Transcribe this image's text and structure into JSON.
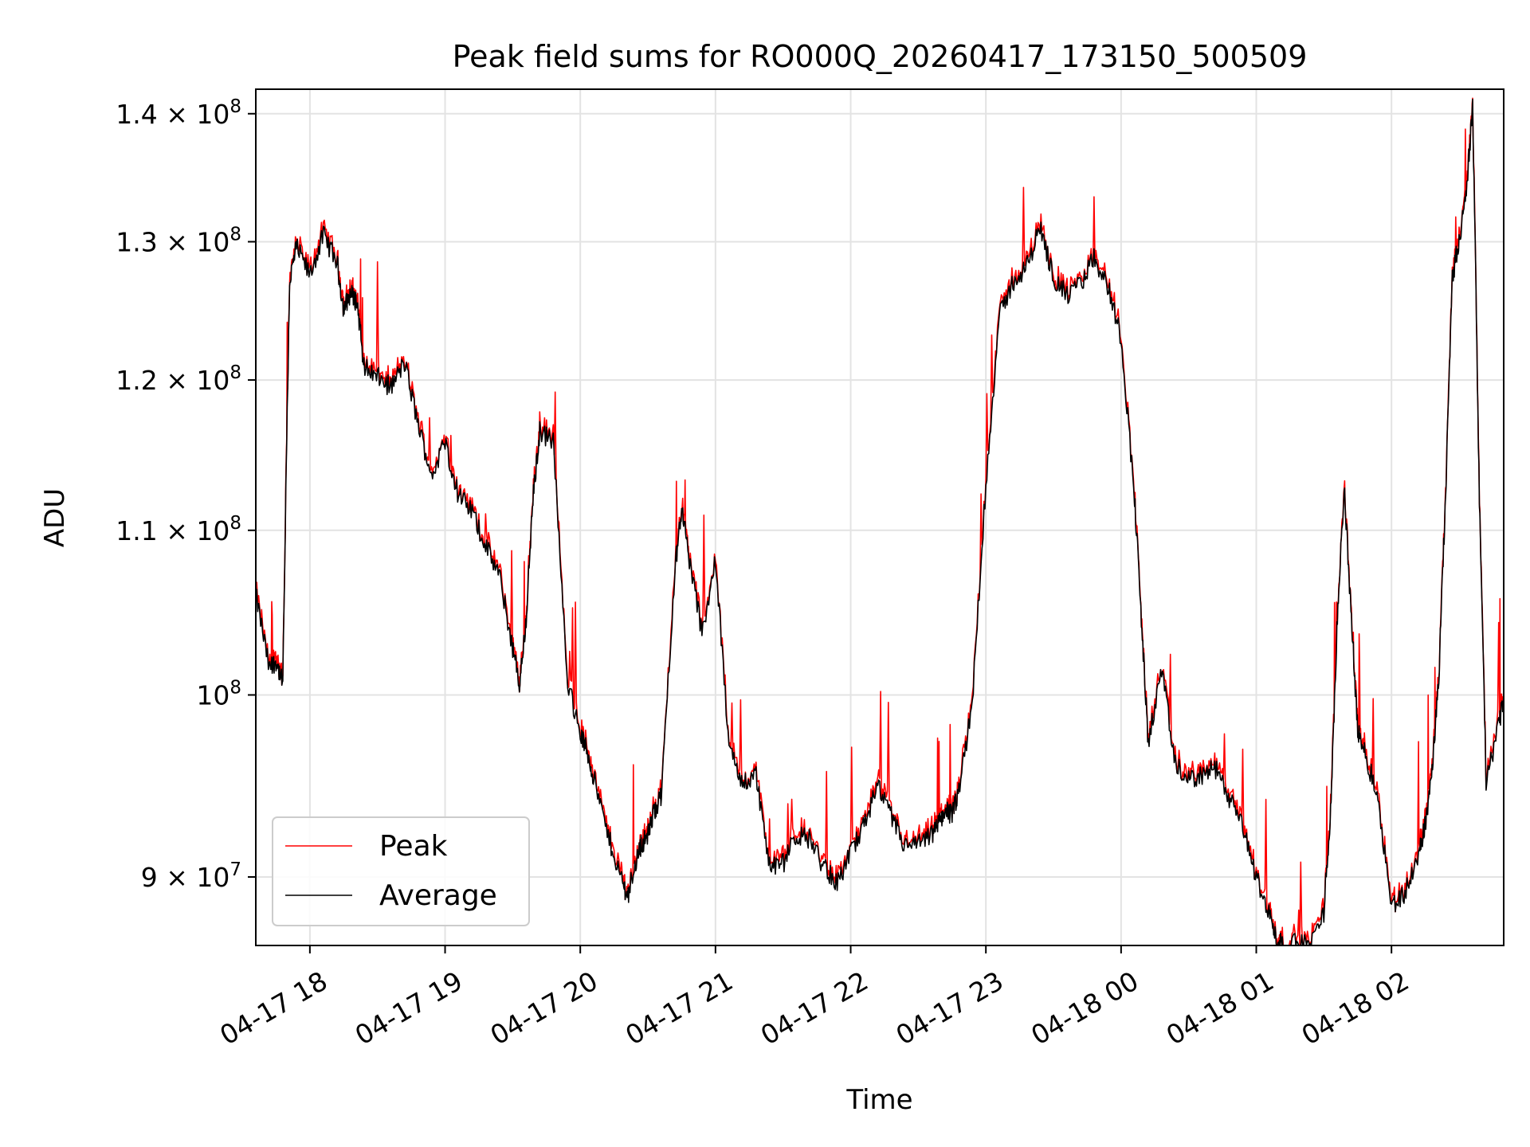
{
  "chart_data": {
    "type": "line",
    "title": "Peak field sums for RO000Q_20260417_173150_500509",
    "xlabel": "Time",
    "ylabel": "ADU",
    "yscale": "log",
    "grid": true,
    "legend_position": "lower-left",
    "xlim": [
      17.6,
      26.83
    ],
    "ylim": [
      86500000,
      142000000
    ],
    "x_ticks": [
      {
        "value": 18,
        "label": "04-17 18"
      },
      {
        "value": 19,
        "label": "04-17 19"
      },
      {
        "value": 20,
        "label": "04-17 20"
      },
      {
        "value": 21,
        "label": "04-17 21"
      },
      {
        "value": 22,
        "label": "04-17 22"
      },
      {
        "value": 23,
        "label": "04-17 23"
      },
      {
        "value": 24,
        "label": "04-18 00"
      },
      {
        "value": 25,
        "label": "04-18 01"
      },
      {
        "value": 26,
        "label": "04-18 02"
      }
    ],
    "y_ticks": [
      {
        "value": 90000000,
        "mantissa": "9",
        "exp": "7"
      },
      {
        "value": 100000000,
        "mantissa": "",
        "exp": "8"
      },
      {
        "value": 110000000,
        "mantissa": "1.1",
        "exp": "8"
      },
      {
        "value": 120000000,
        "mantissa": "1.2",
        "exp": "8"
      },
      {
        "value": 130000000,
        "mantissa": "1.3",
        "exp": "8"
      },
      {
        "value": 140000000,
        "mantissa": "1.4",
        "exp": "8"
      }
    ],
    "x_hours": [
      17.6,
      17.7,
      17.75,
      17.8,
      17.85,
      17.9,
      18.0,
      18.1,
      18.2,
      18.25,
      18.3,
      18.35,
      18.4,
      18.5,
      18.6,
      18.7,
      18.8,
      18.9,
      19.0,
      19.1,
      19.2,
      19.3,
      19.4,
      19.5,
      19.55,
      19.6,
      19.65,
      19.7,
      19.8,
      19.9,
      20.0,
      20.05,
      20.1,
      20.2,
      20.3,
      20.35,
      20.4,
      20.45,
      20.5,
      20.55,
      20.6,
      20.7,
      20.75,
      20.8,
      20.9,
      21.0,
      21.1,
      21.2,
      21.3,
      21.4,
      21.5,
      21.6,
      21.7,
      21.8,
      21.9,
      22.0,
      22.1,
      22.2,
      22.3,
      22.4,
      22.5,
      22.6,
      22.65,
      22.7,
      22.75,
      22.8,
      22.9,
      23.0,
      23.1,
      23.2,
      23.3,
      23.4,
      23.5,
      23.6,
      23.7,
      23.8,
      23.9,
      24.0,
      24.1,
      24.15,
      24.2,
      24.3,
      24.4,
      24.5,
      24.6,
      24.7,
      24.8,
      24.9,
      25.0,
      25.1,
      25.15,
      25.2,
      25.3,
      25.4,
      25.5,
      25.55,
      25.6,
      25.65,
      25.7,
      25.75,
      25.8,
      25.9,
      26.0,
      26.1,
      26.2,
      26.25,
      26.3,
      26.35,
      26.4,
      26.45,
      26.5,
      26.55,
      26.6,
      26.65,
      26.7,
      26.8,
      26.83
    ],
    "series": [
      {
        "name": "Average",
        "color": "#000000",
        "values": [
          106000000,
          101500000,
          102000000,
          100600000,
          127000000,
          129600000,
          127500000,
          130500000,
          128500000,
          125000000,
          126200000,
          125500000,
          121000000,
          120200000,
          119500000,
          121200000,
          117000000,
          113500000,
          115800000,
          112200000,
          111200000,
          109000000,
          107200000,
          102800000,
          100500000,
          104500000,
          112000000,
          116500000,
          115800000,
          101000000,
          97800000,
          96800000,
          95300000,
          92300000,
          90000000,
          89000000,
          90500000,
          91700000,
          92200000,
          93600000,
          94300000,
          107500000,
          111500000,
          108500000,
          103700000,
          108000000,
          97000000,
          95000000,
          95500000,
          90500000,
          90700000,
          92200000,
          92000000,
          90500000,
          89700000,
          91200000,
          92800000,
          94800000,
          93200000,
          91600000,
          91700000,
          92200000,
          92800000,
          93600000,
          93300000,
          94500000,
          99500000,
          113000000,
          124500000,
          127000000,
          128000000,
          131200000,
          127300000,
          126000000,
          126800000,
          128800000,
          126800000,
          123000000,
          112000000,
          104500000,
          97200000,
          101500000,
          96000000,
          95200000,
          95500000,
          95800000,
          94200000,
          92600000,
          90000000,
          88000000,
          86800000,
          86500000,
          86600000,
          86500000,
          88200000,
          93500000,
          104500000,
          112800000,
          105000000,
          98000000,
          96800000,
          94200000,
          88500000,
          89200000,
          91000000,
          92800000,
          95500000,
          101000000,
          112000000,
          127300000,
          130200000,
          133200000,
          140500000,
          112000000,
          95000000,
          98500000,
          100000000
        ]
      },
      {
        "name": "Peak",
        "color": "#ff0000"
      }
    ]
  }
}
